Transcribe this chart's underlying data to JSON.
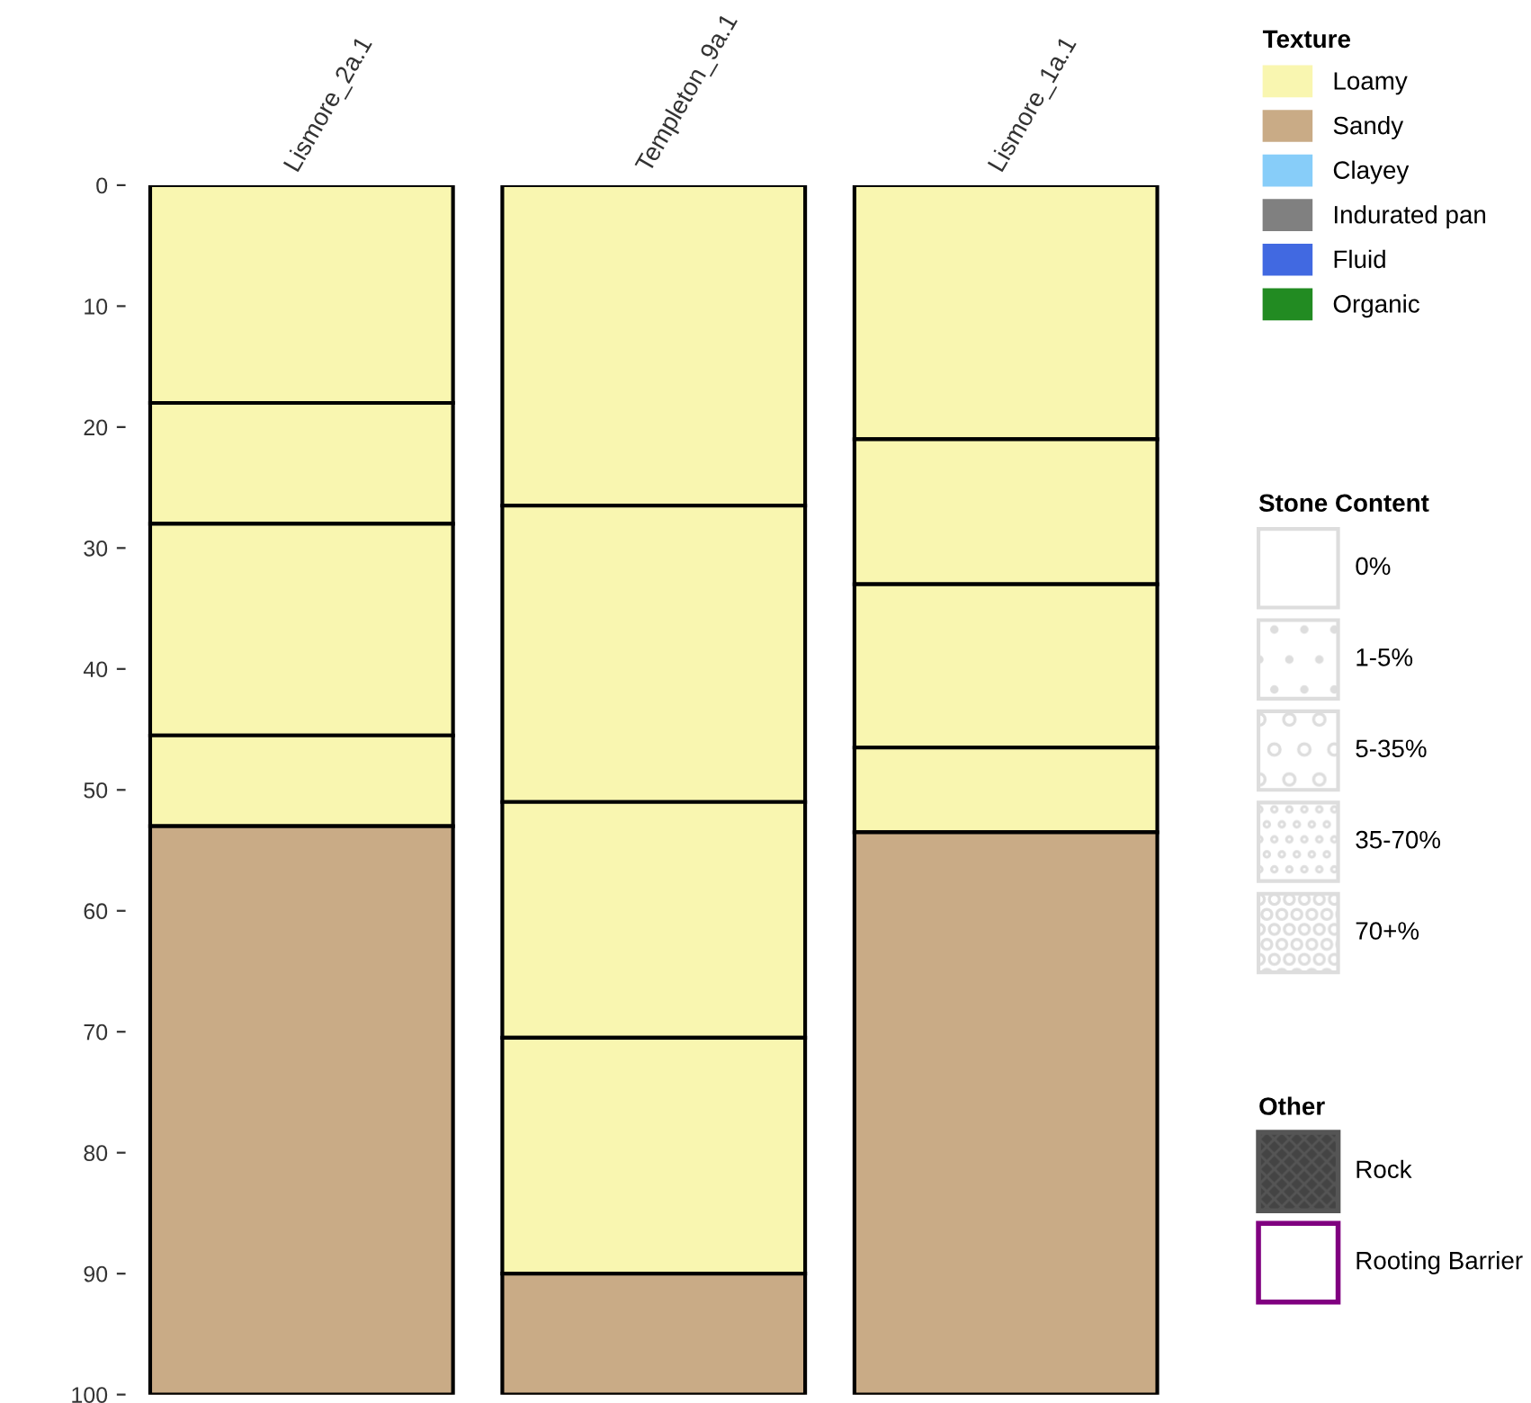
{
  "chart_data": {
    "type": "bar",
    "stacked": true,
    "categories": [
      "Lismore_2a.1",
      "Templeton_9a.1",
      "Lismore_1a.1"
    ],
    "ylim": [
      100,
      0
    ],
    "yticks": [
      0,
      10,
      20,
      30,
      40,
      50,
      60,
      70,
      80,
      90,
      100
    ],
    "grid": false,
    "legend": "right",
    "legend_title": "Texture",
    "series": [
      {
        "colors": [
          "#f9f6b0",
          "#f9f6b0",
          "#f9f6b0"
        ],
        "values": [
          18,
          26.5,
          21
        ]
      },
      {
        "colors": [
          "#f9f6b0",
          "#f9f6b0",
          "#f9f6b0"
        ],
        "values": [
          10,
          24.5,
          12
        ]
      },
      {
        "colors": [
          "#f9f6b0",
          "#f9f6b0",
          "#f9f6b0"
        ],
        "values": [
          17.5,
          19.5,
          13.5
        ]
      },
      {
        "colors": [
          "#f9f6b0",
          "#f9f6b0",
          "#f9f6b0"
        ],
        "values": [
          7.5,
          19.5,
          7
        ]
      },
      {
        "colors": [
          "#c9ab86",
          "#c9ab86",
          "#c9ab86"
        ],
        "values": [
          47,
          10,
          46.5
        ]
      },
      {
        "name": "Loamy",
        "color": "#f9f6b0",
        "values": [
          null,
          null,
          null
        ]
      },
      {
        "name": "Sandy",
        "color": "#c9ab86",
        "values": [
          null,
          null,
          null
        ]
      },
      {
        "name": "Clayey",
        "color": "#87cdf9",
        "values": [
          null,
          null,
          null
        ]
      },
      {
        "name": "Indurated pan",
        "color": "#808080",
        "values": [
          null,
          null,
          null
        ]
      },
      {
        "name": "Fluid",
        "color": "#4169e1",
        "values": [
          null,
          null,
          null
        ]
      },
      {
        "name": "Organic",
        "color": "#228b22",
        "values": [
          null,
          null,
          null
        ]
      }
    ],
    "annotations": [
      "Stone Content",
      "0%",
      "1-5%",
      "5-35%",
      "35-70%",
      "70+%",
      "Other",
      "Rock",
      "Rooting Barrier"
    ]
  }
}
